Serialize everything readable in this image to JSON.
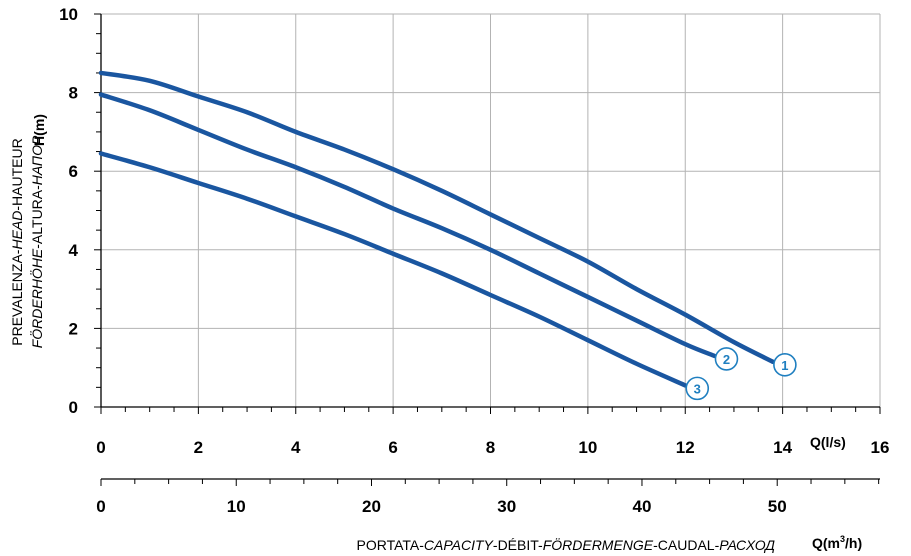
{
  "chart_data": {
    "type": "line",
    "title": "",
    "x": [
      0,
      1,
      2,
      3,
      4,
      5,
      6,
      7,
      8,
      9,
      10,
      11,
      12,
      13,
      13.8
    ],
    "series": [
      {
        "name": "1",
        "label": "1",
        "x": [
          0,
          1,
          2,
          3,
          4,
          5,
          6,
          7,
          8,
          9,
          10,
          11,
          12,
          13,
          13.8
        ],
        "values": [
          8.5,
          8.3,
          7.9,
          7.5,
          7.0,
          6.55,
          6.05,
          5.5,
          4.9,
          4.3,
          3.7,
          3.0,
          2.35,
          1.65,
          1.15
        ]
      },
      {
        "name": "2",
        "label": "2",
        "x": [
          0,
          1,
          2,
          3,
          4,
          5,
          6,
          7,
          8,
          9,
          10,
          11,
          12,
          12.6
        ],
        "values": [
          7.95,
          7.55,
          7.05,
          6.55,
          6.1,
          5.6,
          5.05,
          4.55,
          4.0,
          3.4,
          2.8,
          2.2,
          1.6,
          1.3
        ]
      },
      {
        "name": "3",
        "label": "3",
        "x": [
          0,
          1,
          2,
          3,
          4,
          5,
          6,
          7,
          8,
          9,
          10,
          11,
          12
        ],
        "values": [
          6.45,
          6.1,
          5.7,
          5.3,
          4.85,
          4.4,
          3.9,
          3.4,
          2.85,
          2.3,
          1.7,
          1.1,
          0.55
        ]
      }
    ],
    "x_axis": {
      "unit_label": "Q(l/s)",
      "range": [
        0,
        16
      ],
      "ticks": [
        "0",
        "2",
        "4",
        "6",
        "8",
        "10",
        "12",
        "14",
        "16"
      ]
    },
    "x2_axis": {
      "unit_label_base": "Q(m",
      "unit_label_sup": "3",
      "unit_label_tail": "/h)",
      "range": [
        0,
        57.6
      ],
      "ticks": [
        "0",
        "10",
        "20",
        "30",
        "40",
        "50"
      ],
      "title_parts": [
        "PORTATA-",
        "CAPACITY",
        "-DÉBIT-",
        "FÖRDERMENGE",
        "-CAUDAL-",
        "РАСХОД"
      ]
    },
    "y_axis": {
      "unit_label": "H(m)",
      "range": [
        0,
        10
      ],
      "ticks": [
        "0",
        "2",
        "4",
        "6",
        "8",
        "10"
      ],
      "title_line1_parts": [
        "PREVALENZA-",
        "HEAD",
        "-HAUTEUR"
      ],
      "title_line2_parts": [
        "FÖRDERHÖHE",
        "-ALTURA-",
        "НАПОР"
      ]
    },
    "grid": true,
    "line_color": "#1a56a0",
    "label_color": "#1f7fc0"
  }
}
